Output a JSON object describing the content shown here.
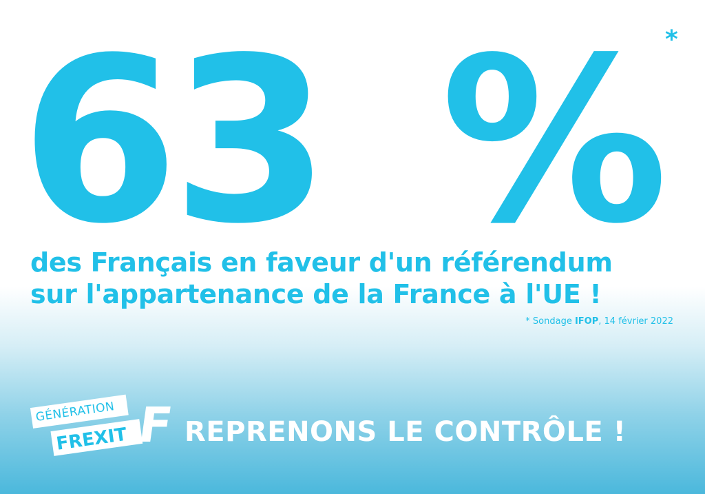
{
  "hero": {
    "number": "63",
    "percent": "%",
    "asterisk": "*"
  },
  "headline": {
    "line1": "des Français en faveur d'un référendum",
    "line2": "sur l'appartenance de la France à l'UE !"
  },
  "source": {
    "prefix": "* Sondage ",
    "org": "IFOP",
    "suffix": ", 14 février 2022"
  },
  "logo": {
    "line1": "GÉNÉRATION",
    "line2": "FREXIT",
    "mark": "F"
  },
  "slogan": "REPRENONS LE CONTRÔLE !",
  "colors": {
    "accent": "#21c0e8",
    "footer": "#4bb8dc",
    "text_light": "#ffffff"
  }
}
